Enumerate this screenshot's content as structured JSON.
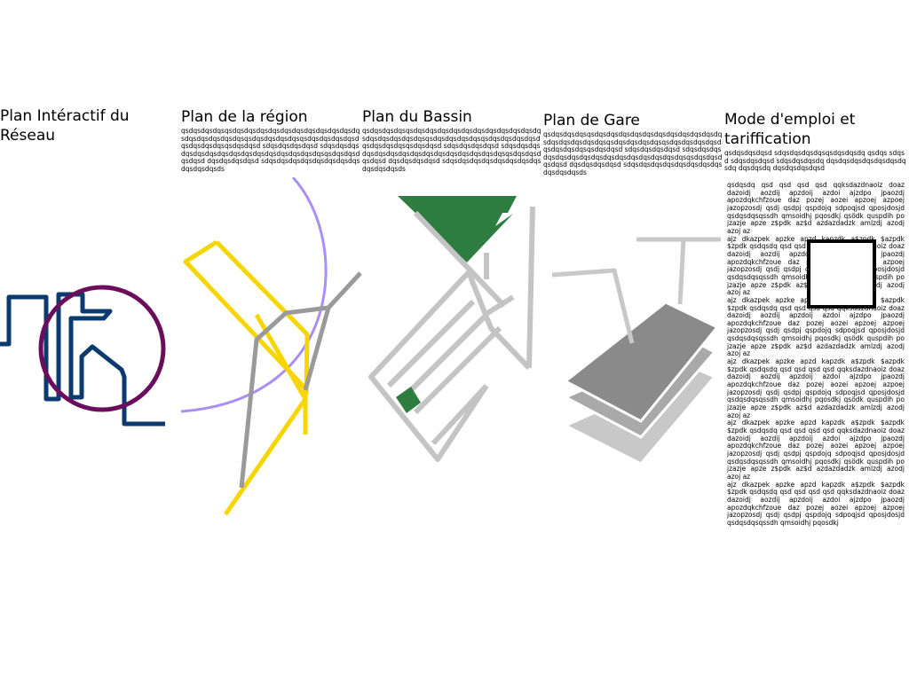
{
  "panels": [
    {
      "title": "Plan Intéractif du Réseau",
      "description": ""
    },
    {
      "title": "Plan de la région",
      "description": "qsdqsdqsdqsqsdqsdqsdqsdqsdqsdqsdqsdqsdqsdqsdqsdqsdqsdqsdqsdqsqsdqsdqsdqsdqsqsdqsdqsdqsdqsdqsdqsdqsdqsqsdqsdqsd sdqsdqsdqsdqsd sdqsdqsdqsdqsdqsdqsdqsdqsdqsdqsdqsdqsdqsdqsdqsqsdqsdqsdqsdqsd dqsdqsdqsdqsd sdqsdqsdqsdqsdqsdqsdqsdqsdqsdqsdqsds"
    },
    {
      "title": "Plan du Bassin",
      "description": "qsdqsdqsdqsqsdqsdqsdqsdqsdqsdqsdqsdqsdqsdqsdqsdqsdqsdqsdqsdqsqsdqsdqsdqsdqsqsdqsdqsdqsdqsdqsdqsdqsdqsqsdqsdqsd sdqsdqsdqsdqsd sdqsdqsdqsdqsdqsdqsdqsdqsdqsdqsdqsdqsdqsdqsdqsqsdqsdqsdqsdqsd dqsdqsdqsdqsd sdqsdqsdqsdqsdqsdqsdqsdqsdqsdqsdqsds"
    },
    {
      "title": "Plan de Gare",
      "description": "qsdqsdqsdqsqsdqsdqsdqsdqsdqsdqsdqsdqsdqsdqsdqsdqsdqsdqsdqsdqsqsdqsdqsdqsdqsqsdqsdqsdqsdqsdqsdqsdqsdqsqsdqsdqsd sdqsdqsdqsdqsd sdqsdqsdqsdqsdqsdqsdqsdqsdqsdqsdqsdqsdqsdqsdqsqsdqsdqsdqsdqsd dqsdqsdqsdqsd sdqsdqsdqsdqsdqsdqsdqsdqsdqsdqsdqsds"
    },
    {
      "title": "Mode d'emploi et tariffication",
      "description": "qsdqsdqsdqsd sdqsdqsdqsdqsqsdqsdqsdq qsdqs sdqsd sdqsdqsdqsd sdqsdqsdqsdq dqsdqsdqsdqsdqsdqsdqsdq dqsdqsdq dqsdqsdqsdqsd"
    }
  ],
  "manual": {
    "paragraphs": [
      "qsdqsdq qsd qsd qsd qsd qqksdazdnaoiz doaz dazoidj aozdij apzdoij azdoi ajzdpo jpaozdj apozdqkchfzoue daz pozej aozei apzoej azpoej jazopzosdj qsdj qsdpj qspdojq sdpoqjsd qposjdosjd qsdqsdqsqssdh qmsoidhj pqosdkj qsödk quspdih po jzazje apze z$pdk az$d azdazdadzk amlzdj azodj azoj az",
      "ajz dkazpek apzke apzd kapzdk a$zpdk $azpdk $zpdk qsdqsdq qsd qsd qsd qsd qqksdazdnaoiz doaz dazoidj aozdij apzdoij azdoi ajzdpo jpaozdj apozdqkchfzoue daz pozej aozei apzoej azpoej jazopzosdj qsdj qsdpj qspdojq sdpoqjsd qposjdosjd qsdqsdqsqssdh qmsoidhj pqosdkj qsödk quspdih po jzazje apze z$pdk az$d azdazdadzk amlzdj azodj azoj az",
      "ajz dkazpek apzke apzd kapzdk a$zpdk $azpdk $zpdk qsdqsdq qsd qsd qsd qsd qqksdazdnaoiz doaz dazoidj aozdij apzdoij azdoi ajzdpo jpaozdj apozdqkchfzoue daz pozej aozei apzoej azpoej jazopzosdj qsdj qsdpj qspdojq sdpoqjsd qposjdosjd qsdqsdqsqssdh qmsoidhj pqosdkj qsödk quspdih po jzazje apze z$pdk az$d azdazdadzk amlzdj azodj azoj az",
      "ajz dkazpek apzke apzd kapzdk a$zpdk $azpdk $zpdk qsdqsdq qsd qsd qsd qsd qqksdazdnaoiz doaz dazoidj aozdij apzdoij azdoi ajzdpo jpaozdj apozdqkchfzoue daz pozej aozei apzoej azpoej jazopzosdj qsdj qsdpj qspdojq sdpoqjsd qposjdosjd qsdqsdqsqssdh qmsoidhj pqosdkj qsödk quspdih po jzazje apze z$pdk az$d azdazdadzk amlzdj azodj azoj az",
      "ajz dkazpek apzke apzd kapzdk a$zpdk $azpdk $zpdk qsdqsdq qsd qsd qsd qsd qqksdazdnaoiz doaz dazoidj aozdij apzdoij azdoi ajzdpo jpaozdj apozdqkchfzoue daz pozej aozei apzoej azpoej jazopzosdj qsdj qsdpj qspdojq sdpoqjsd qposjdosjd qsdqsdqsqssdh qmsoidhj pqosdkj qsödk quspdih po jzazje apze z$pdk az$d azdazdadzk amlzdj azodj azoj az",
      "ajz dkazpek apzke apzd kapzdk a$zpdk $azpdk $zpdk qsdqsdq qsd qsd qsd qsd qqksdazdnaoiz doaz dazoidj aozdij apzdoij azdoi ajzdpo jpaozdj apozdqkchfzoue daz pozej aozei apzoej azpoej jazopzosdj qsdj qsdpj qspdojq sdpoqjsd qposjdosjd qsdqsdqsqssdh qmsoidhj pqosdkj"
    ]
  },
  "colors": {
    "network_line": "#0b3a6e",
    "network_circle": "#6a0d5c",
    "region_yellow": "#f7d500",
    "region_grey": "#9a9a9a",
    "region_arc": "#a98ef7",
    "basin_green": "#2e7d40",
    "basin_grey": "#c4c4c4",
    "station_dark": "#8a8a8a",
    "station_mid": "#a9a9a9",
    "station_light": "#c8c8c8"
  },
  "icons": {
    "network": "network-map-icon",
    "region": "region-map-icon",
    "basin": "basin-map-icon",
    "station": "station-map-icon",
    "manual": "manual-square-icon"
  }
}
